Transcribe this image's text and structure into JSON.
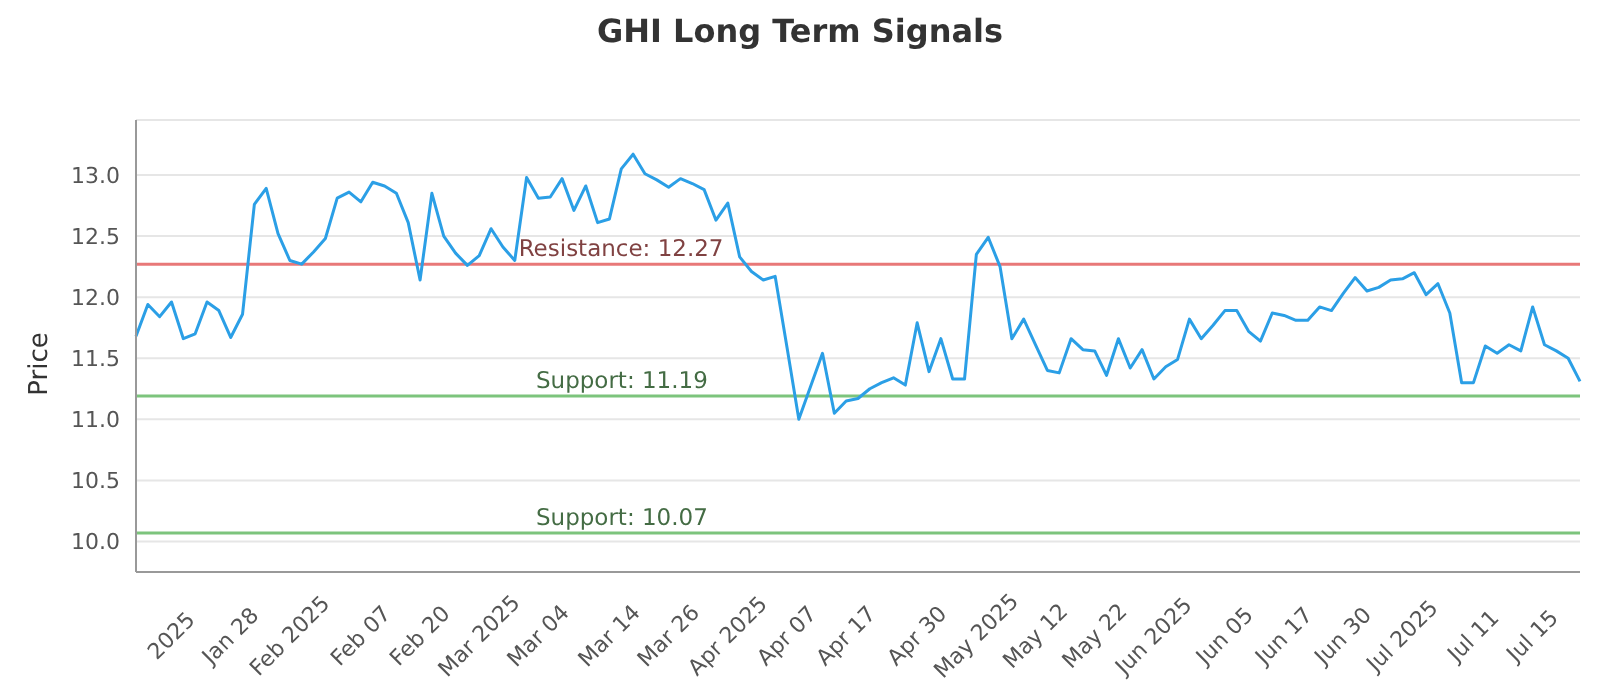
{
  "chart_data": {
    "type": "line",
    "title": "GHI Long Term Signals",
    "ylabel": "Price",
    "categories": [
      null,
      null,
      null,
      "2025",
      null,
      null,
      null,
      null,
      "Jan 28",
      null,
      null,
      null,
      null,
      "Feb 2025",
      null,
      null,
      null,
      null,
      null,
      "Feb 07",
      null,
      null,
      null,
      null,
      "Feb 20",
      null,
      null,
      null,
      null,
      "Mar 2025",
      null,
      null,
      null,
      null,
      "Mar 04",
      null,
      null,
      null,
      null,
      null,
      "Mar 14",
      null,
      null,
      null,
      null,
      "Mar 26",
      null,
      null,
      null,
      null,
      "Apr 2025",
      null,
      null,
      null,
      null,
      "Apr 07",
      null,
      null,
      null,
      null,
      "Apr 17",
      null,
      null,
      null,
      null,
      null,
      "Apr 30",
      null,
      null,
      null,
      null,
      "May 2025",
      null,
      null,
      null,
      null,
      "May 12",
      null,
      null,
      null,
      null,
      "May 22",
      null,
      null,
      null,
      null,
      "Jun 2025",
      null,
      null,
      null,
      null,
      null,
      "Jun 05",
      null,
      null,
      null,
      null,
      "Jun 17",
      null,
      null,
      null,
      null,
      "Jun 30",
      null,
      null,
      null,
      null,
      "Jul 2025",
      null,
      null,
      null,
      null,
      null,
      "Jul 11",
      null,
      null,
      null,
      null,
      "Jul 15",
      null,
      null,
      null,
      null
    ],
    "series": [
      {
        "color": "#2b9fe6",
        "values": [
          11.68,
          11.94,
          11.84,
          11.96,
          11.66,
          11.7,
          11.96,
          11.89,
          11.67,
          11.86,
          12.76,
          12.89,
          12.52,
          12.3,
          12.27,
          12.37,
          12.48,
          12.81,
          12.86,
          12.78,
          12.94,
          12.91,
          12.85,
          12.61,
          12.14,
          12.85,
          12.5,
          12.36,
          12.26,
          12.34,
          12.56,
          12.41,
          12.3,
          12.98,
          12.81,
          12.82,
          12.97,
          12.71,
          12.91,
          12.61,
          12.64,
          13.05,
          13.17,
          13.01,
          12.96,
          12.9,
          12.97,
          12.93,
          12.88,
          12.63,
          12.77,
          12.33,
          12.21,
          12.14,
          12.17,
          11.59,
          11.0,
          11.27,
          11.54,
          11.05,
          11.15,
          11.17,
          11.25,
          11.3,
          11.34,
          11.28,
          11.79,
          11.39,
          11.66,
          11.33,
          11.33,
          12.35,
          12.49,
          12.25,
          11.66,
          11.82,
          11.61,
          11.4,
          11.38,
          11.66,
          11.57,
          11.56,
          11.36,
          11.66,
          11.42,
          11.57,
          11.33,
          11.43,
          11.49,
          11.82,
          11.66,
          11.77,
          11.89,
          11.89,
          11.72,
          11.64,
          11.87,
          11.85,
          11.81,
          11.81,
          11.92,
          11.89,
          12.03,
          12.16,
          12.05,
          12.08,
          12.14,
          12.15,
          12.2,
          12.02,
          12.11,
          11.87,
          11.3,
          11.3,
          11.6,
          11.54,
          11.61,
          11.56,
          11.92,
          11.61,
          11.56,
          11.5,
          11.31
        ]
      }
    ],
    "ylim": [
      9.75,
      13.45
    ],
    "yticks": [
      {
        "value": 10,
        "label": "10.0"
      },
      {
        "value": 10.5,
        "label": "10.5"
      },
      {
        "value": 11,
        "label": "11.0"
      },
      {
        "value": 11.5,
        "label": "11.5"
      },
      {
        "value": 12,
        "label": "12.0"
      },
      {
        "value": 12.5,
        "label": "12.5"
      },
      {
        "value": 13,
        "label": "13.0"
      }
    ],
    "ref_lines": [
      {
        "axis": "y",
        "value": 12.27,
        "label": "Resistance: 12.27",
        "color": "#e87878"
      },
      {
        "axis": "y",
        "value": 11.19,
        "label": "Support: 11.19",
        "color": "#7cc47c"
      },
      {
        "axis": "y",
        "value": 10.07,
        "label": "Support: 10.07",
        "color": "#7cc47c"
      }
    ],
    "grid": "y",
    "legend": false,
    "marker": "none",
    "line_style": "solid"
  }
}
